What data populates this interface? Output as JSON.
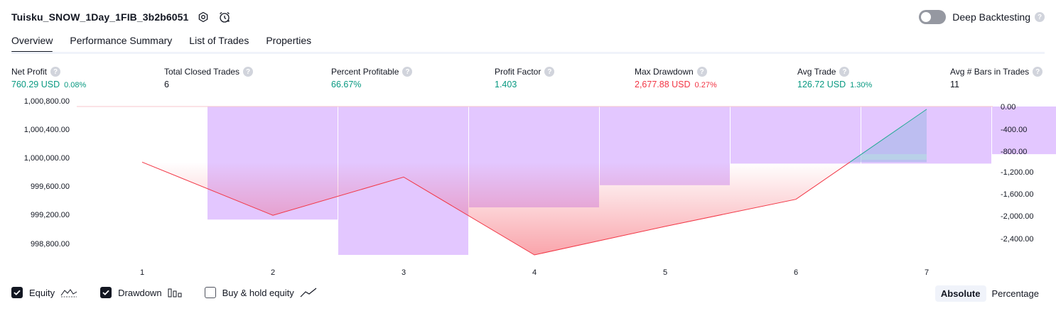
{
  "header": {
    "title": "Tuisku_SNOW_1Day_1FIB_3b2b6051",
    "deep_backtesting_label": "Deep Backtesting",
    "help_glyph": "?"
  },
  "tabs": [
    {
      "label": "Overview",
      "active": true
    },
    {
      "label": "Performance Summary",
      "active": false
    },
    {
      "label": "List of Trades",
      "active": false
    },
    {
      "label": "Properties",
      "active": false
    }
  ],
  "metrics": [
    {
      "label": "Net Profit",
      "value": "760.29 USD",
      "pct": "0.08%",
      "tone": "pos"
    },
    {
      "label": "Total Closed Trades",
      "value": "6",
      "pct": "",
      "tone": ""
    },
    {
      "label": "Percent Profitable",
      "value": "66.67%",
      "pct": "",
      "tone": "pos"
    },
    {
      "label": "Profit Factor",
      "value": "1.403",
      "pct": "",
      "tone": "pos"
    },
    {
      "label": "Max Drawdown",
      "value": "2,677.88 USD",
      "pct": "0.27%",
      "tone": "neg"
    },
    {
      "label": "Avg Trade",
      "value": "126.72 USD",
      "pct": "1.30%",
      "tone": "pos"
    },
    {
      "label": "Avg # Bars in Trades",
      "value": "11",
      "pct": "",
      "tone": ""
    }
  ],
  "chart_data": {
    "type": "line",
    "x": [
      1,
      2,
      3,
      4,
      5,
      6,
      7
    ],
    "equity": {
      "values": [
        1000000.0,
        999235.0,
        999785.0,
        998665.0,
        999075.0,
        999465.0,
        1000760.29
      ],
      "color": "#f23645"
    },
    "drawdown": {
      "categories": [
        2,
        3,
        4,
        5,
        6,
        7,
        8
      ],
      "values": [
        -2040.0,
        -2677.88,
        -1820.0,
        -1420.0,
        -1030.0,
        -1030.0,
        -860.0
      ],
      "color": "#e1c4ff"
    },
    "left_axis": {
      "ticks": [
        "1,000,800.00",
        "1,000,400.00",
        "1,000,000.00",
        "999,600.00",
        "999,200.00",
        "998,800.00"
      ],
      "range": [
        998665,
        1000800
      ]
    },
    "right_axis": {
      "ticks": [
        "0.00",
        "-400.00",
        "-800.00",
        "-1,200.00",
        "-1,600.00",
        "-2,000.00",
        "-2,400.00"
      ],
      "range": [
        -2677.88,
        0
      ]
    },
    "x_ticks": [
      "1",
      "2",
      "3",
      "4",
      "5",
      "6",
      "7"
    ]
  },
  "legend": [
    {
      "label": "Equity",
      "checked": true
    },
    {
      "label": "Drawdown",
      "checked": true
    },
    {
      "label": "Buy & hold equity",
      "checked": false
    }
  ],
  "modes": [
    {
      "label": "Absolute",
      "active": true
    },
    {
      "label": "Percentage",
      "active": false
    }
  ]
}
